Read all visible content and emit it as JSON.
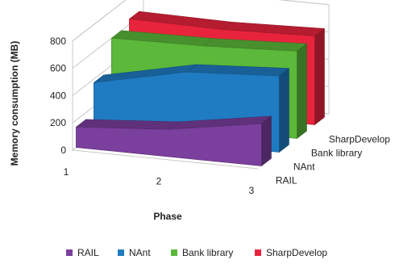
{
  "chart_data": {
    "type": "area",
    "view": "3d",
    "ylabel": "Memory consumption (MB)",
    "xlabel": "Phase",
    "x": [
      1,
      2,
      3
    ],
    "ylim": [
      0,
      800
    ],
    "yticks": [
      "0",
      "200",
      "400",
      "600",
      "800"
    ],
    "xticks": [
      "1",
      "2",
      "3"
    ],
    "grid": true,
    "legend_position": "bottom",
    "series": [
      {
        "name": "RAIL",
        "color": "#7b3f9e",
        "values": [
          150,
          200,
          310
        ]
      },
      {
        "name": "NAnt",
        "color": "#1f7bc2",
        "values": [
          375,
          520,
          560
        ]
      },
      {
        "name": "Bank library",
        "color": "#5bb83a",
        "values": [
          600,
          610,
          640
        ]
      },
      {
        "name": "SharpDevelop",
        "color": "#e8243c",
        "values": [
          640,
          630,
          650
        ]
      }
    ],
    "depth_labels": [
      "SharpDevelop",
      "Bank library",
      "NAnt",
      "RAIL"
    ]
  }
}
